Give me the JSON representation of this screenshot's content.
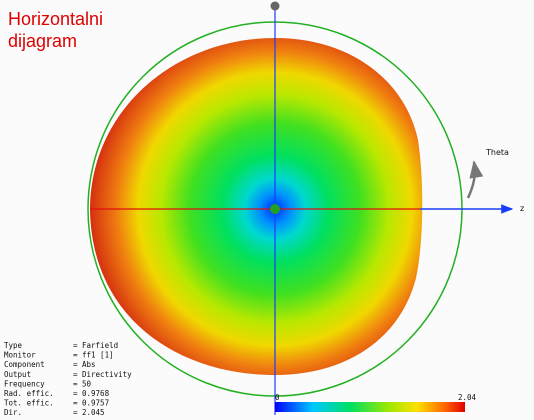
{
  "title": [
    "Horizontalni",
    "dijagram"
  ],
  "axes": {
    "theta": "Theta",
    "z": "z"
  },
  "colorbar": {
    "min": "0",
    "max": "2.04"
  },
  "info": {
    "separator": "=",
    "rows": [
      [
        "Type",
        "Farfield"
      ],
      [
        "Monitor",
        "ff1 [1]"
      ],
      [
        "Component",
        "Abs"
      ],
      [
        "Output",
        "Directivity"
      ],
      [
        "Frequency",
        "50"
      ],
      [
        "Rad. effic.",
        "0.9768"
      ],
      [
        "Tot. effic.",
        "0.9757"
      ],
      [
        "Dir.",
        "2.045"
      ]
    ]
  }
}
